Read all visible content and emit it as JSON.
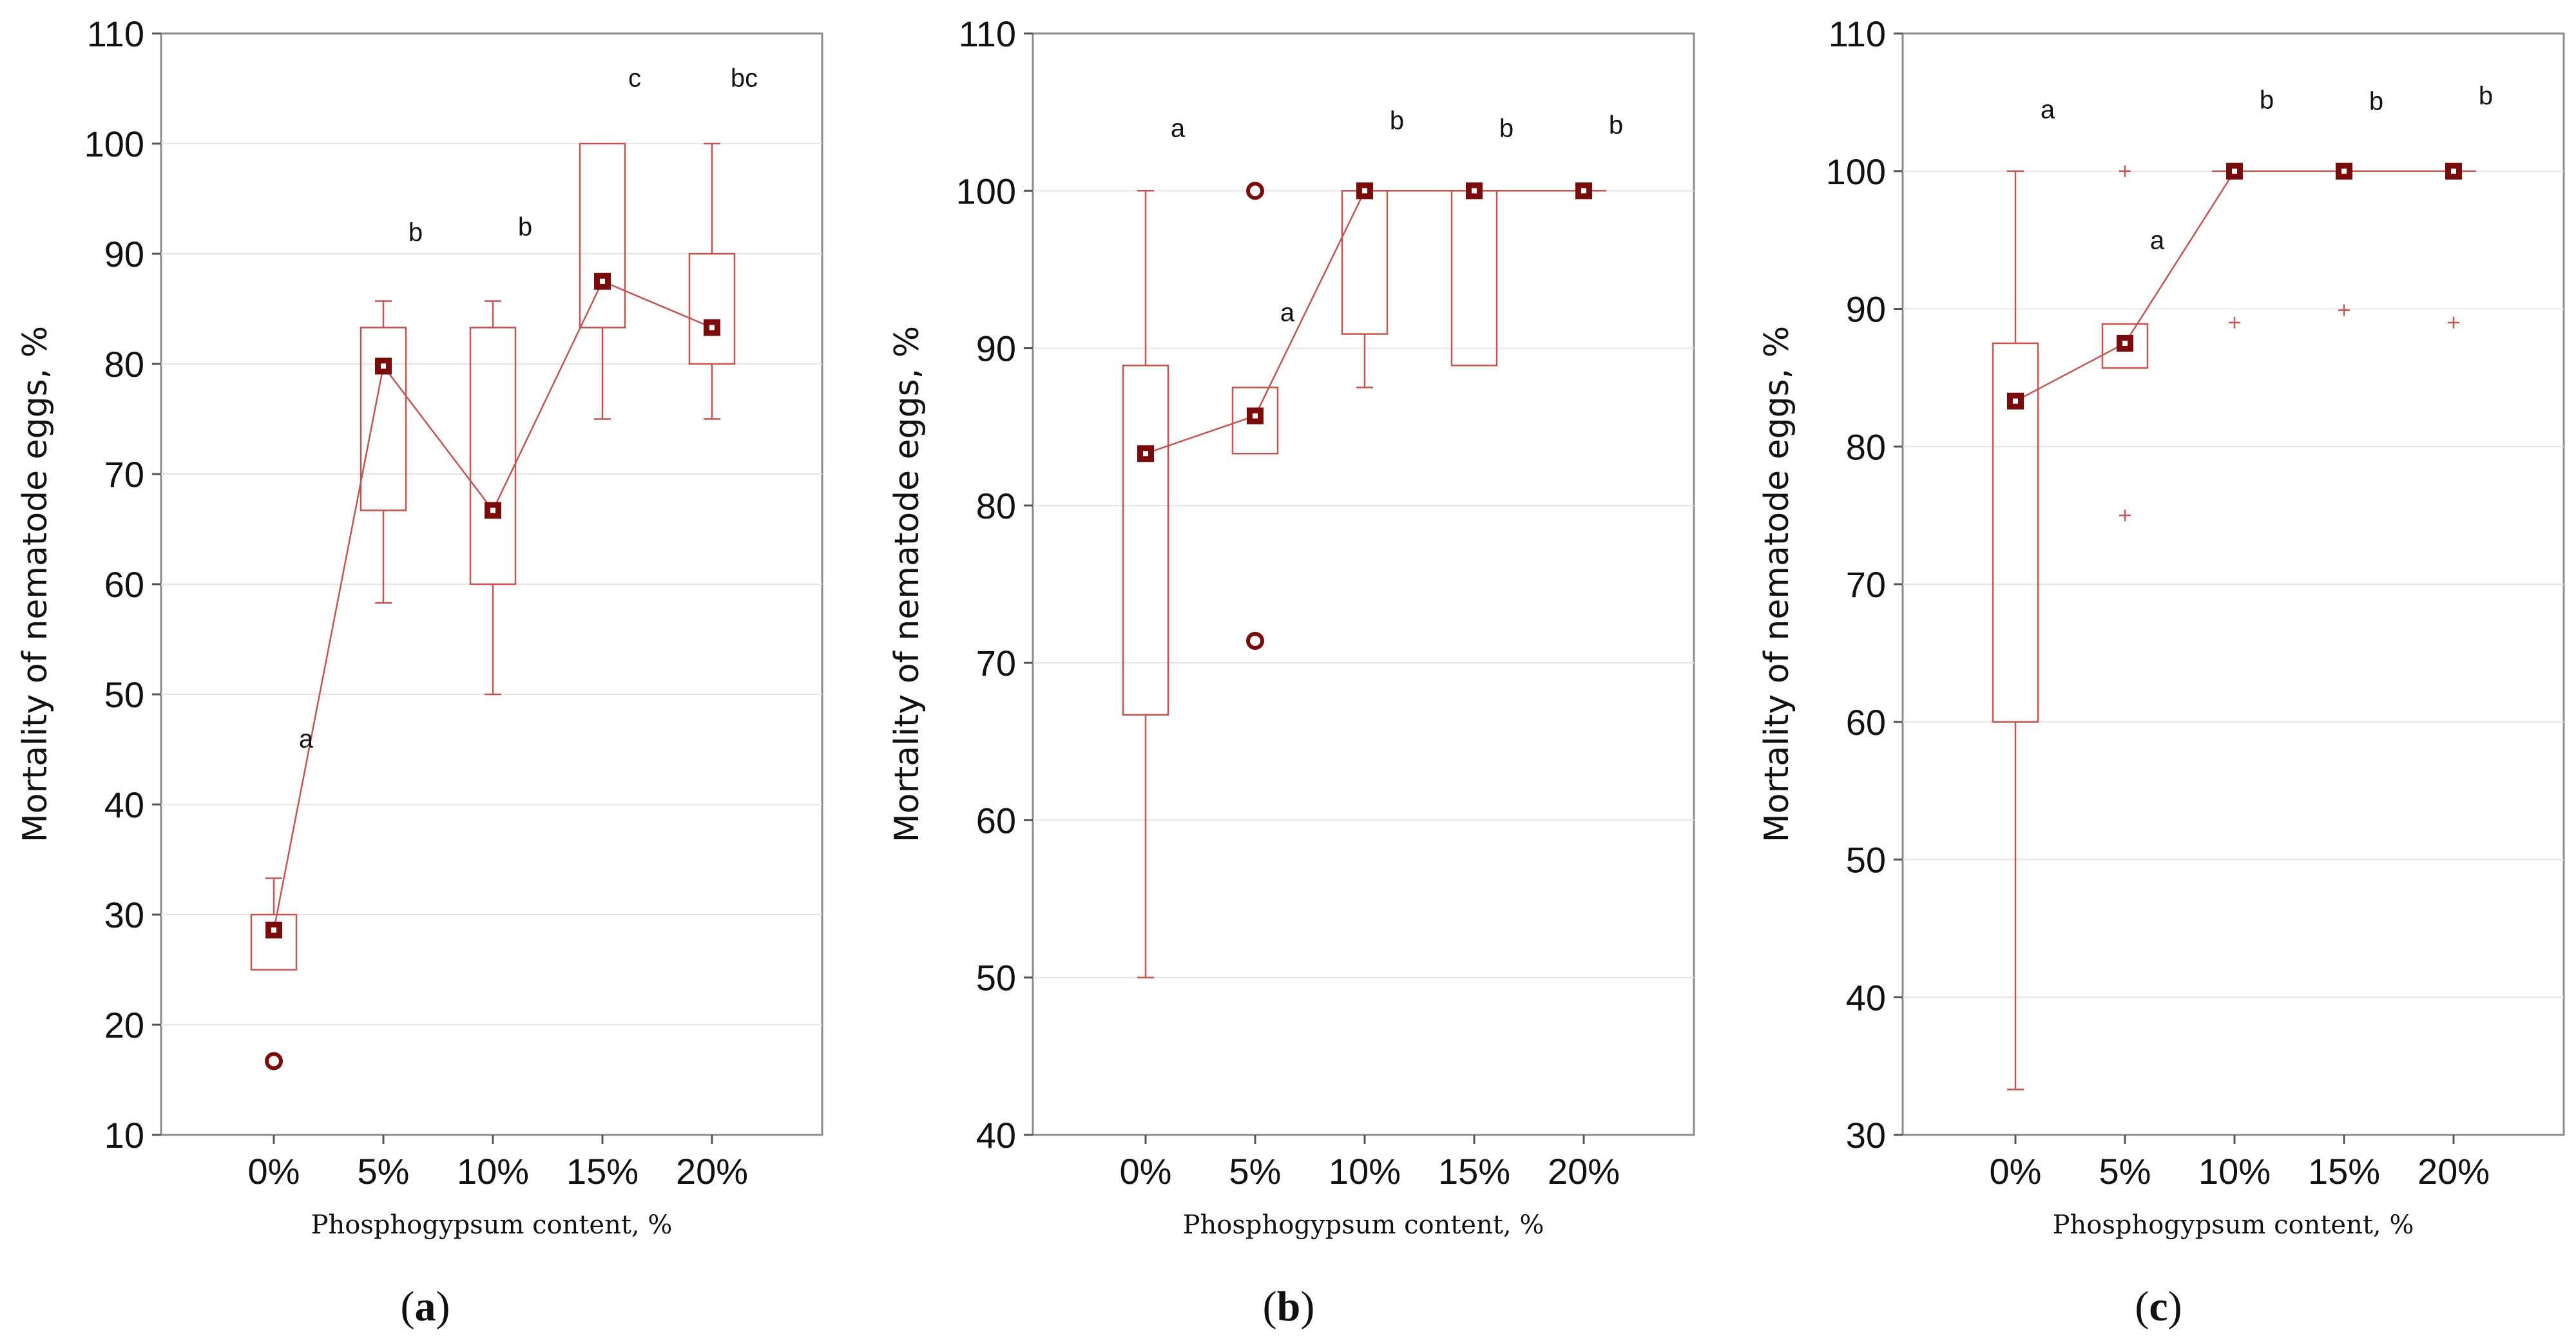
{
  "chart_data": [
    {
      "type": "box",
      "panel_label": "a",
      "xlabel": "Phosphogypsum content, %",
      "ylabel": "Mortality of nematode eggs, %",
      "ylim": [
        10,
        110
      ],
      "yticks": [
        10,
        20,
        30,
        40,
        50,
        60,
        70,
        80,
        90,
        100,
        110
      ],
      "categories": [
        "0%",
        "5%",
        "10%",
        "15%",
        "20%"
      ],
      "median": [
        28.6,
        79.8,
        66.7,
        87.5,
        83.3
      ],
      "q1": [
        25,
        66.7,
        60,
        83.3,
        80
      ],
      "q3": [
        30,
        83.3,
        83.3,
        100,
        90
      ],
      "whisker_low": [
        null,
        58.3,
        50,
        75,
        75
      ],
      "whisker_high": [
        33.3,
        85.7,
        85.7,
        null,
        100
      ],
      "outliers": [
        [
          16.7
        ],
        [],
        [],
        [],
        []
      ],
      "extremes": [
        [],
        [],
        [],
        [],
        []
      ],
      "letters": [
        "a",
        "b",
        "b",
        "c",
        "bc"
      ],
      "letter_y": [
        46,
        92,
        92.5,
        106,
        106
      ]
    },
    {
      "type": "box",
      "panel_label": "b",
      "xlabel": "Phosphogypsum content, %",
      "ylabel": "Mortality of nematode eggs, %",
      "ylim": [
        40,
        110
      ],
      "yticks": [
        40,
        50,
        60,
        70,
        80,
        90,
        100,
        110
      ],
      "categories": [
        "0%",
        "5%",
        "10%",
        "15%",
        "20%"
      ],
      "median": [
        83.3,
        85.7,
        100,
        100,
        100
      ],
      "q1": [
        66.7,
        83.3,
        90.9,
        88.9,
        100
      ],
      "q3": [
        88.9,
        87.5,
        100,
        100,
        100
      ],
      "whisker_low": [
        50,
        null,
        87.5,
        null,
        null
      ],
      "whisker_high": [
        100,
        null,
        null,
        null,
        null
      ],
      "outliers": [
        [],
        [
          71.4,
          100
        ],
        [],
        [],
        []
      ],
      "extremes": [
        [],
        [],
        [],
        [],
        []
      ],
      "letters": [
        "a",
        "a",
        "b",
        "b",
        "b"
      ],
      "letter_y": [
        104,
        92.3,
        104.5,
        104,
        104.2
      ]
    },
    {
      "type": "box",
      "panel_label": "c",
      "xlabel": "Phosphogypsum content, %",
      "ylabel": "Mortality of nematode eggs, %",
      "ylim": [
        30,
        110
      ],
      "yticks": [
        30,
        40,
        50,
        60,
        70,
        80,
        90,
        100,
        110
      ],
      "categories": [
        "0%",
        "5%",
        "10%",
        "15%",
        "20%"
      ],
      "median": [
        83.3,
        87.5,
        100,
        100,
        100
      ],
      "q1": [
        60,
        85.7,
        100,
        100,
        100
      ],
      "q3": [
        87.5,
        88.9,
        100,
        100,
        100
      ],
      "whisker_low": [
        33.3,
        null,
        null,
        null,
        null
      ],
      "whisker_high": [
        100,
        null,
        null,
        null,
        null
      ],
      "outliers": [
        [],
        [],
        [],
        [],
        []
      ],
      "extremes": [
        [],
        [
          75,
          100
        ],
        [
          89
        ],
        [
          89.9
        ],
        [
          89
        ]
      ],
      "letters": [
        "a",
        "a",
        "b",
        "b",
        "b"
      ],
      "letter_y": [
        104.5,
        95,
        105.2,
        105.1,
        105.5
      ]
    }
  ]
}
